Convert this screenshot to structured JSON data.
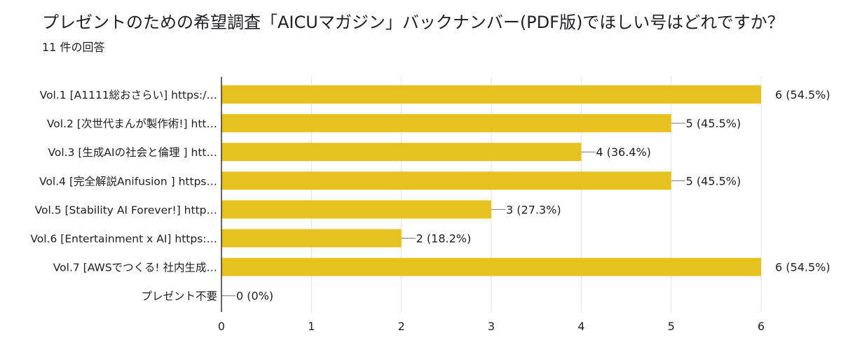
{
  "header": {
    "title": "プレゼントのための希望調査「AICUマガジン」バックナンバー(PDF版)でほしい号はどれですか？",
    "subtitle": "11 件の回答"
  },
  "colors": {
    "bar": "#e5c21d",
    "grid": "#e3e3e3",
    "axis": "#333333",
    "text": "#202124"
  },
  "chart_data": {
    "type": "bar",
    "orientation": "horizontal",
    "categories": [
      "Vol.1 [A1111総おさらい] https:/…",
      "Vol.2 [次世代まんが製作術!] htt…",
      "Vol.3 [生成AIの社会と倫理 ] htt…",
      "Vol.4 [完全解説Anifusion ] https…",
      "Vol.5 [Stability AI Forever!] http…",
      "Vol.6 [Entertainment x AI] https:…",
      "Vol.7 [AWSでつくる! 社内生成…",
      "プレゼント不要"
    ],
    "values": [
      6,
      5,
      4,
      5,
      3,
      2,
      6,
      0
    ],
    "value_labels": [
      "6 (54.5%)",
      "5 (45.5%)",
      "4 (36.4%)",
      "5 (45.5%)",
      "3 (27.3%)",
      "2 (18.2%)",
      "6 (54.5%)",
      "0 (0%)"
    ],
    "xlim": [
      0,
      6
    ],
    "xticks": [
      0,
      1,
      2,
      3,
      4,
      5,
      6
    ],
    "grid": true
  }
}
